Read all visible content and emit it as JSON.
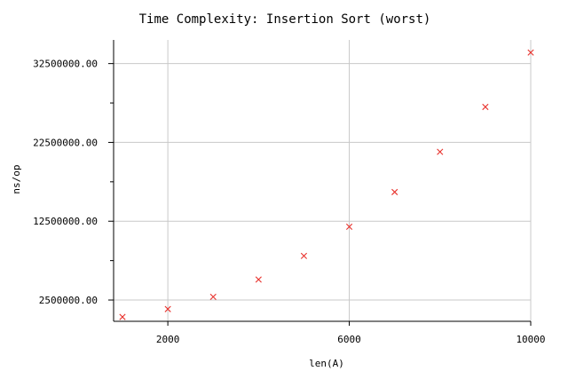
{
  "chart_data": {
    "type": "scatter",
    "title": "Time Complexity: Insertion Sort (worst)",
    "xlabel": "len(A)",
    "ylabel": "ns/op",
    "xlim": [
      1000,
      10000
    ],
    "ylim": [
      -200000,
      35500000
    ],
    "x_ticks": [
      2000,
      6000,
      10000
    ],
    "x_tick_labels": [
      "2000",
      "6000",
      "10000"
    ],
    "y_ticks": [
      2500000,
      12500000,
      22500000,
      32500000
    ],
    "y_tick_labels": [
      "2500000.00",
      "12500000.00",
      "22500000.00",
      "32500000.00"
    ],
    "y_minor_ticks": [
      7500000,
      17500000,
      27500000
    ],
    "grid": true,
    "marker": "x",
    "series": [
      {
        "color": "#e8322d",
        "x": [
          1000,
          2000,
          3000,
          4000,
          5000,
          6000,
          7000,
          8000,
          9000,
          10000
        ],
        "y": [
          350000,
          1350000,
          2900000,
          5100000,
          8100000,
          11800000,
          16200000,
          21300000,
          27000000,
          33900000
        ]
      }
    ]
  }
}
